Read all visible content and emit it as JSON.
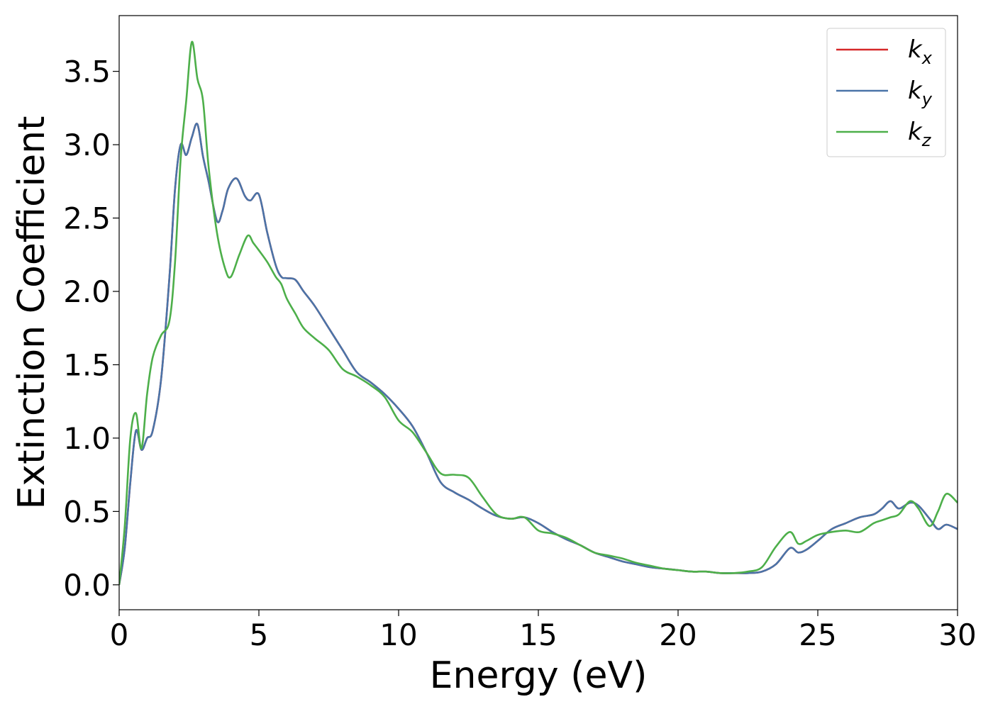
{
  "chart_data": {
    "type": "line",
    "title": "",
    "xlabel": "Energy (eV)",
    "ylabel": "Extinction Coefficient",
    "xlim": [
      0,
      30
    ],
    "ylim": [
      -0.17,
      3.88
    ],
    "xticks": [
      0,
      5,
      10,
      15,
      20,
      25,
      30
    ],
    "xtick_labels": [
      "0",
      "5",
      "10",
      "15",
      "20",
      "25",
      "30"
    ],
    "yticks": [
      0.0,
      0.5,
      1.0,
      1.5,
      2.0,
      2.5,
      3.0,
      3.5
    ],
    "ytick_labels": [
      "0.0",
      "0.5",
      "1.0",
      "1.5",
      "2.0",
      "2.5",
      "3.0",
      "3.5"
    ],
    "grid": false,
    "legend_position": "top-right",
    "series": [
      {
        "name": "k",
        "subscript": "x",
        "color": "#d62728",
        "x": [
          0,
          0.2,
          0.4,
          0.6,
          0.8,
          1.0,
          1.2,
          1.5,
          1.8,
          2.0,
          2.2,
          2.4,
          2.6,
          2.8,
          3.0,
          3.2,
          3.5,
          3.7,
          3.9,
          4.2,
          4.5,
          4.7,
          5.0,
          5.3,
          5.6,
          5.8,
          6.0,
          6.3,
          6.6,
          7.0,
          7.5,
          8.0,
          8.5,
          9.0,
          9.5,
          10.0,
          10.5,
          11.0,
          11.5,
          12.0,
          12.5,
          13.0,
          13.5,
          14.0,
          14.5,
          15.0,
          15.5,
          16.0,
          16.5,
          17.0,
          17.5,
          18.0,
          18.5,
          19.0,
          19.5,
          20.0,
          20.5,
          21.0,
          21.5,
          22.0,
          22.5,
          23.0,
          23.5,
          24.0,
          24.3,
          24.6,
          25.0,
          25.5,
          26.0,
          26.5,
          27.0,
          27.3,
          27.6,
          27.9,
          28.3,
          28.6,
          29.0,
          29.3,
          29.6,
          30.0
        ],
        "values": [
          0.0,
          0.25,
          0.7,
          1.05,
          0.92,
          1.0,
          1.05,
          1.4,
          2.1,
          2.7,
          3.0,
          2.93,
          3.05,
          3.14,
          2.92,
          2.75,
          2.48,
          2.55,
          2.7,
          2.77,
          2.65,
          2.62,
          2.66,
          2.4,
          2.18,
          2.1,
          2.09,
          2.08,
          2.0,
          1.9,
          1.75,
          1.6,
          1.45,
          1.38,
          1.3,
          1.2,
          1.08,
          0.9,
          0.7,
          0.63,
          0.58,
          0.52,
          0.47,
          0.45,
          0.46,
          0.42,
          0.36,
          0.31,
          0.27,
          0.22,
          0.19,
          0.16,
          0.14,
          0.12,
          0.11,
          0.1,
          0.09,
          0.09,
          0.08,
          0.08,
          0.08,
          0.09,
          0.14,
          0.25,
          0.22,
          0.24,
          0.3,
          0.38,
          0.42,
          0.46,
          0.48,
          0.52,
          0.57,
          0.52,
          0.56,
          0.54,
          0.45,
          0.38,
          0.41,
          0.38
        ]
      },
      {
        "name": "k",
        "subscript": "y",
        "color": "#4a74a8",
        "x": [
          0,
          0.2,
          0.4,
          0.6,
          0.8,
          1.0,
          1.2,
          1.5,
          1.8,
          2.0,
          2.2,
          2.4,
          2.6,
          2.8,
          3.0,
          3.2,
          3.5,
          3.7,
          3.9,
          4.2,
          4.5,
          4.7,
          5.0,
          5.3,
          5.6,
          5.8,
          6.0,
          6.3,
          6.6,
          7.0,
          7.5,
          8.0,
          8.5,
          9.0,
          9.5,
          10.0,
          10.5,
          11.0,
          11.5,
          12.0,
          12.5,
          13.0,
          13.5,
          14.0,
          14.5,
          15.0,
          15.5,
          16.0,
          16.5,
          17.0,
          17.5,
          18.0,
          18.5,
          19.0,
          19.5,
          20.0,
          20.5,
          21.0,
          21.5,
          22.0,
          22.5,
          23.0,
          23.5,
          24.0,
          24.3,
          24.6,
          25.0,
          25.5,
          26.0,
          26.5,
          27.0,
          27.3,
          27.6,
          27.9,
          28.3,
          28.6,
          29.0,
          29.3,
          29.6,
          30.0
        ],
        "values": [
          0.0,
          0.25,
          0.7,
          1.05,
          0.92,
          1.0,
          1.05,
          1.4,
          2.1,
          2.7,
          3.0,
          2.93,
          3.05,
          3.14,
          2.92,
          2.75,
          2.48,
          2.55,
          2.7,
          2.77,
          2.65,
          2.62,
          2.66,
          2.4,
          2.18,
          2.1,
          2.09,
          2.08,
          2.0,
          1.9,
          1.75,
          1.6,
          1.45,
          1.38,
          1.3,
          1.2,
          1.08,
          0.9,
          0.7,
          0.63,
          0.58,
          0.52,
          0.47,
          0.45,
          0.46,
          0.42,
          0.36,
          0.31,
          0.27,
          0.22,
          0.19,
          0.16,
          0.14,
          0.12,
          0.11,
          0.1,
          0.09,
          0.09,
          0.08,
          0.08,
          0.08,
          0.09,
          0.14,
          0.25,
          0.22,
          0.24,
          0.3,
          0.38,
          0.42,
          0.46,
          0.48,
          0.52,
          0.57,
          0.52,
          0.56,
          0.54,
          0.45,
          0.38,
          0.41,
          0.38
        ]
      },
      {
        "name": "k",
        "subscript": "z",
        "color": "#4daf4a",
        "x": [
          0,
          0.2,
          0.4,
          0.6,
          0.8,
          1.0,
          1.2,
          1.5,
          1.8,
          2.0,
          2.2,
          2.4,
          2.6,
          2.8,
          3.0,
          3.2,
          3.5,
          3.8,
          4.0,
          4.3,
          4.6,
          4.8,
          5.0,
          5.3,
          5.6,
          5.8,
          6.0,
          6.3,
          6.6,
          7.0,
          7.5,
          8.0,
          8.5,
          9.0,
          9.5,
          10.0,
          10.5,
          11.0,
          11.5,
          12.0,
          12.5,
          13.0,
          13.5,
          14.0,
          14.5,
          15.0,
          15.5,
          16.0,
          16.5,
          17.0,
          17.5,
          18.0,
          18.5,
          19.0,
          19.5,
          20.0,
          20.5,
          21.0,
          21.5,
          22.0,
          22.5,
          23.0,
          23.5,
          24.0,
          24.3,
          24.6,
          25.0,
          25.5,
          26.0,
          26.5,
          27.0,
          27.3,
          27.6,
          27.9,
          28.3,
          28.6,
          29.0,
          29.3,
          29.6,
          30.0
        ],
        "values": [
          0.0,
          0.4,
          1.0,
          1.17,
          0.93,
          1.3,
          1.55,
          1.7,
          1.8,
          2.2,
          2.9,
          3.3,
          3.7,
          3.45,
          3.3,
          2.85,
          2.4,
          2.15,
          2.1,
          2.25,
          2.38,
          2.33,
          2.28,
          2.2,
          2.1,
          2.05,
          1.95,
          1.85,
          1.75,
          1.68,
          1.6,
          1.47,
          1.42,
          1.36,
          1.28,
          1.12,
          1.04,
          0.9,
          0.76,
          0.75,
          0.73,
          0.6,
          0.48,
          0.45,
          0.46,
          0.37,
          0.35,
          0.32,
          0.27,
          0.22,
          0.2,
          0.18,
          0.15,
          0.13,
          0.11,
          0.1,
          0.09,
          0.09,
          0.08,
          0.08,
          0.09,
          0.12,
          0.26,
          0.36,
          0.28,
          0.3,
          0.34,
          0.36,
          0.37,
          0.36,
          0.42,
          0.44,
          0.46,
          0.48,
          0.57,
          0.52,
          0.4,
          0.5,
          0.62,
          0.56
        ]
      }
    ]
  }
}
